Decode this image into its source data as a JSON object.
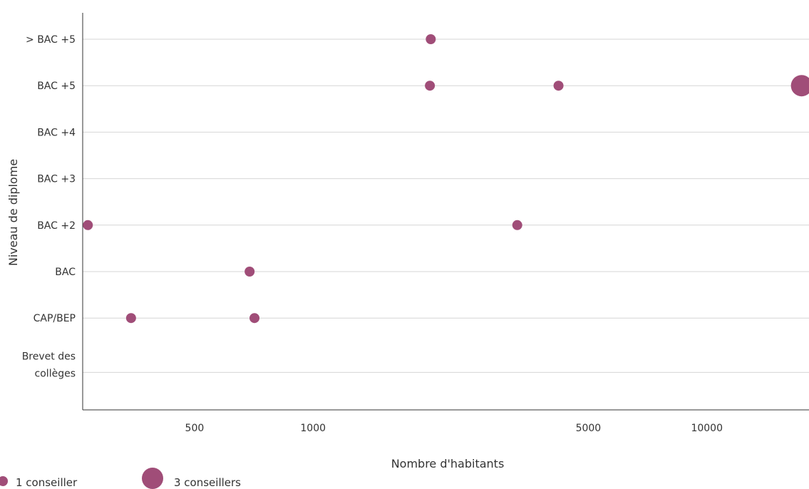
{
  "chart_data": {
    "type": "scatter",
    "title": "",
    "xlabel": "Nombre d'habitants",
    "ylabel": "Niveau de diplome",
    "xscale": "log",
    "xlim": [
      260,
      17500
    ],
    "xticks": [
      {
        "value": 500,
        "label": "500"
      },
      {
        "value": 1000,
        "label": "1000"
      },
      {
        "value": 5000,
        "label": "5000"
      },
      {
        "value": 10000,
        "label": "10000"
      }
    ],
    "categories": [
      {
        "key": "brevet",
        "lines": [
          "Brevet des",
          "collèges"
        ]
      },
      {
        "key": "capbep",
        "lines": [
          "CAP/BEP"
        ]
      },
      {
        "key": "bac",
        "lines": [
          "BAC"
        ]
      },
      {
        "key": "bac2",
        "lines": [
          "BAC +2"
        ]
      },
      {
        "key": "bac3",
        "lines": [
          "BAC +3"
        ]
      },
      {
        "key": "bac4",
        "lines": [
          "BAC +4"
        ]
      },
      {
        "key": "bac5",
        "lines": [
          "BAC +5"
        ]
      },
      {
        "key": "gtbac5",
        "lines": [
          "> BAC +5"
        ]
      }
    ],
    "grid": true,
    "color": "#a04d78",
    "points": [
      {
        "x": 1990,
        "y": "gtbac5",
        "conseillers": 1
      },
      {
        "x": 1980,
        "y": "bac5",
        "conseillers": 1
      },
      {
        "x": 4200,
        "y": "bac5",
        "conseillers": 1
      },
      {
        "x": 17400,
        "y": "bac5",
        "conseillers": 3
      },
      {
        "x": 268,
        "y": "bac2",
        "conseillers": 1
      },
      {
        "x": 3300,
        "y": "bac2",
        "conseillers": 1
      },
      {
        "x": 690,
        "y": "bac",
        "conseillers": 1
      },
      {
        "x": 710,
        "y": "capbep",
        "conseillers": 1
      },
      {
        "x": 345,
        "y": "capbep",
        "conseillers": 1
      }
    ],
    "legend": [
      {
        "label": "1 conseiller",
        "conseillers": 1
      },
      {
        "label": "3 conseillers",
        "conseillers": 3
      }
    ],
    "legend_position": "bottom-left"
  }
}
